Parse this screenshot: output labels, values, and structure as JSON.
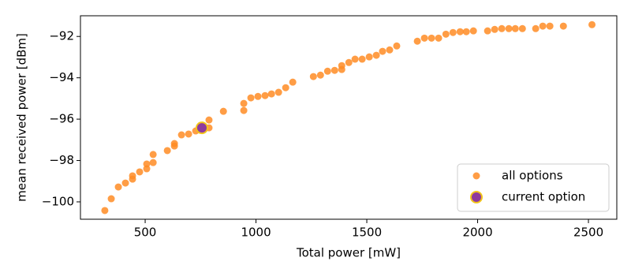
{
  "chart_data": {
    "type": "scatter",
    "xlabel": "Total power [mW]",
    "ylabel": "mean received power [dBm]",
    "xlim": [
      208,
      2628
    ],
    "ylim": [
      -100.84,
      -91.0
    ],
    "xticks": [
      500,
      1000,
      1500,
      2000,
      2500
    ],
    "yticks": [
      {
        "value": -100,
        "label": "−100"
      },
      {
        "value": -98,
        "label": "−98"
      },
      {
        "value": -96,
        "label": "−96"
      },
      {
        "value": -94,
        "label": "−94"
      },
      {
        "value": -92,
        "label": "−92"
      }
    ],
    "legend": "lower right",
    "series": [
      {
        "name": "all options",
        "color": "#ff8c25",
        "x": [
          318,
          347,
          379,
          411,
          443,
          443,
          475,
          507,
          507,
          536,
          536,
          600,
          632,
          632,
          664,
          696,
          728,
          760,
          788,
          788,
          853,
          945,
          945,
          977,
          1009,
          1041,
          1070,
          1102,
          1134,
          1166,
          1259,
          1291,
          1323,
          1355,
          1387,
          1387,
          1419,
          1447,
          1479,
          1511,
          1543,
          1571,
          1603,
          1635,
          1728,
          1760,
          1792,
          1824,
          1857,
          1889,
          1921,
          1949,
          1981,
          2045,
          2077,
          2109,
          2141,
          2170,
          2202,
          2262,
          2294,
          2326,
          2387,
          2516
        ],
        "values": [
          -100.42,
          -99.85,
          -99.28,
          -99.09,
          -98.74,
          -98.9,
          -98.55,
          -98.17,
          -98.4,
          -97.71,
          -98.1,
          -97.52,
          -97.18,
          -97.3,
          -96.76,
          -96.72,
          -96.57,
          -96.42,
          -96.42,
          -96.04,
          -95.62,
          -95.24,
          -95.58,
          -94.97,
          -94.9,
          -94.86,
          -94.78,
          -94.7,
          -94.48,
          -94.21,
          -93.94,
          -93.87,
          -93.68,
          -93.64,
          -93.6,
          -93.41,
          -93.26,
          -93.1,
          -93.1,
          -92.99,
          -92.91,
          -92.72,
          -92.65,
          -92.46,
          -92.23,
          -92.08,
          -92.08,
          -92.08,
          -91.89,
          -91.81,
          -91.77,
          -91.77,
          -91.73,
          -91.73,
          -91.66,
          -91.62,
          -91.62,
          -91.62,
          -91.62,
          -91.62,
          -91.5,
          -91.5,
          -91.5,
          -91.43
        ]
      },
      {
        "name": "current option",
        "color": "#8e3a9e",
        "edgecolor": "#f2c41a",
        "x": [
          756
        ],
        "values": [
          -96.42
        ]
      }
    ]
  }
}
